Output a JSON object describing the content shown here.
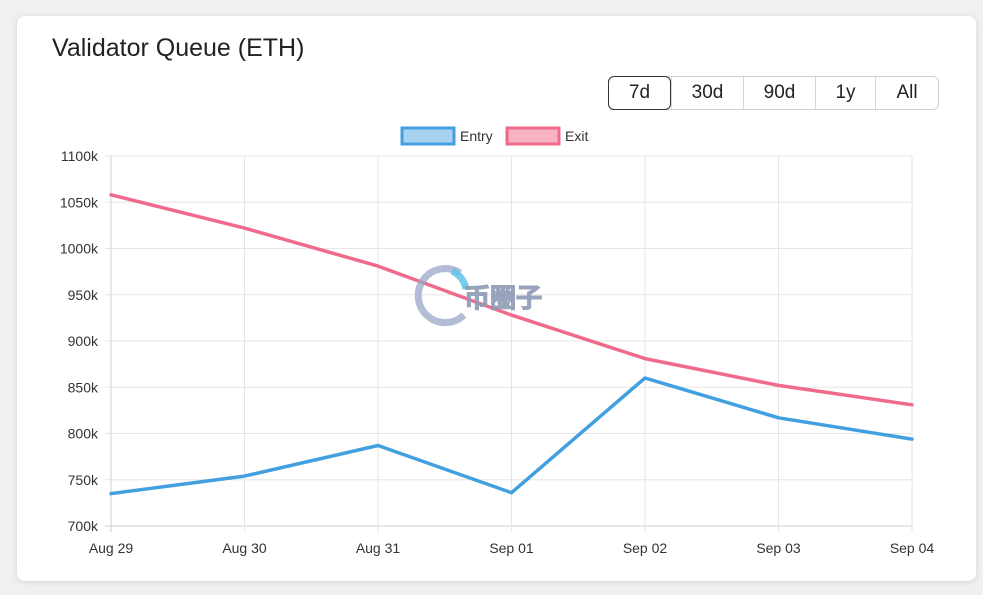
{
  "title": "Validator Queue (ETH)",
  "range_buttons": [
    {
      "label": "7d",
      "active": true
    },
    {
      "label": "30d",
      "active": false
    },
    {
      "label": "90d",
      "active": false
    },
    {
      "label": "1y",
      "active": false
    },
    {
      "label": "All",
      "active": false
    }
  ],
  "watermark": "币圈子",
  "chart_data": {
    "type": "line",
    "categories": [
      "Aug 29",
      "Aug 30",
      "Aug 31",
      "Sep 01",
      "Sep 02",
      "Sep 03",
      "Sep 04"
    ],
    "series": [
      {
        "name": "Entry",
        "color": "#42a0e0",
        "fill": "#a6d2f1",
        "values": [
          735,
          754,
          787,
          736,
          860,
          817,
          794
        ]
      },
      {
        "name": "Exit",
        "color": "#f06b8b",
        "fill": "#f8b4c4",
        "values": [
          1058,
          1022,
          981,
          928,
          881,
          852,
          831
        ]
      }
    ],
    "ylim": [
      700,
      1100
    ],
    "yticks": [
      700,
      750,
      800,
      850,
      900,
      950,
      1000,
      1050,
      1100
    ],
    "ytick_suffix": "k",
    "legend_position": "top-center",
    "grid": true
  }
}
